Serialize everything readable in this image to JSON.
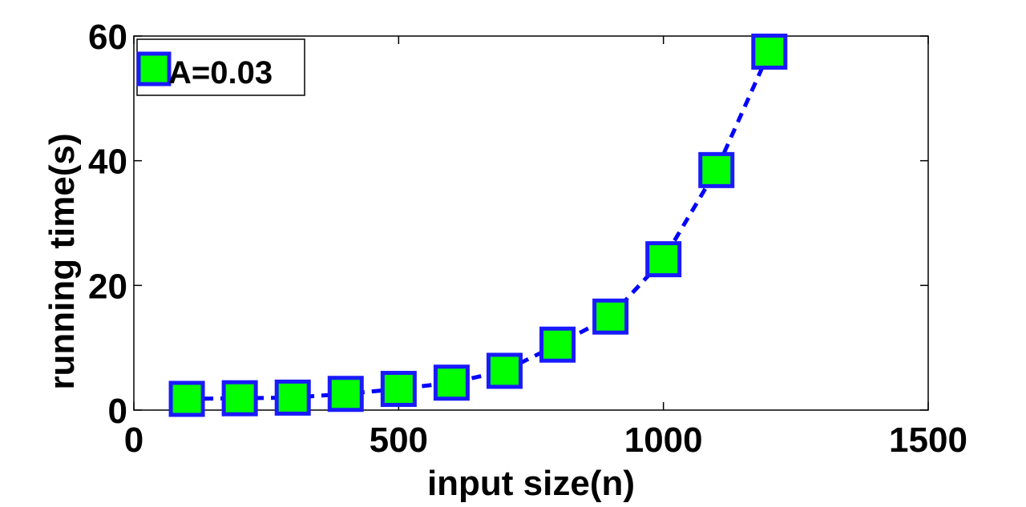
{
  "chart_data": {
    "type": "line",
    "xlabel": "input size(n)",
    "ylabel": "running time(s)",
    "xlim": [
      0,
      1500
    ],
    "ylim": [
      0,
      60
    ],
    "xticks": [
      0,
      500,
      1000,
      1500
    ],
    "yticks": [
      0,
      20,
      40,
      60
    ],
    "xtick_labels": [
      "0",
      "500",
      "1000",
      "1500"
    ],
    "ytick_labels": [
      "0",
      "20",
      "40",
      "60"
    ],
    "grid": false,
    "legend_position": "top-left",
    "series": [
      {
        "name": "A=0.03",
        "x": [
          100,
          200,
          300,
          400,
          500,
          600,
          700,
          800,
          900,
          1000,
          1100,
          1200
        ],
        "y": [
          1.8,
          1.9,
          2.0,
          2.6,
          3.4,
          4.4,
          6.3,
          10.5,
          15.0,
          24.2,
          38.5,
          57.5
        ],
        "line_color": "#0000ff",
        "line_style": "dashed",
        "marker": "square",
        "marker_fill": "#00ff00",
        "marker_edge": "#1a1aff"
      }
    ]
  }
}
